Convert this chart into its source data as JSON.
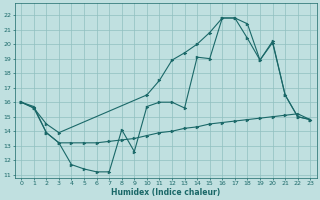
{
  "background_color": "#c0e0e0",
  "grid_color": "#90c0c0",
  "line_color": "#1a6868",
  "xlabel": "Humidex (Indice chaleur)",
  "xlim": [
    -0.5,
    23.5
  ],
  "ylim": [
    10.8,
    22.8
  ],
  "yticks": [
    11,
    12,
    13,
    14,
    15,
    16,
    17,
    18,
    19,
    20,
    21,
    22
  ],
  "xticks": [
    0,
    1,
    2,
    3,
    4,
    5,
    6,
    7,
    8,
    9,
    10,
    11,
    12,
    13,
    14,
    15,
    16,
    17,
    18,
    19,
    20,
    21,
    22,
    23
  ],
  "line1_x": [
    0,
    1,
    2,
    3,
    4,
    5,
    6,
    7,
    8,
    9,
    10,
    11,
    12,
    13,
    14,
    15,
    16,
    17,
    18,
    19,
    20,
    21,
    22,
    23
  ],
  "line1_y": [
    16.0,
    15.7,
    13.9,
    13.2,
    11.7,
    11.4,
    11.2,
    11.2,
    14.1,
    12.6,
    15.7,
    16.0,
    16.0,
    15.6,
    19.1,
    19.0,
    21.8,
    21.8,
    21.4,
    18.9,
    20.2,
    16.5,
    15.0,
    14.8
  ],
  "line2_x": [
    0,
    1,
    2,
    3,
    4,
    5,
    6,
    7,
    8,
    9,
    10,
    11,
    12,
    13,
    14,
    15,
    16,
    17,
    18,
    19,
    20,
    21,
    22,
    23
  ],
  "line2_y": [
    16.0,
    15.6,
    13.9,
    13.2,
    13.2,
    13.2,
    13.2,
    13.3,
    13.4,
    13.5,
    13.7,
    13.9,
    14.0,
    14.2,
    14.3,
    14.5,
    14.6,
    14.7,
    14.8,
    14.9,
    15.0,
    15.1,
    15.2,
    14.8
  ],
  "line3_x": [
    0,
    1,
    2,
    3,
    10,
    11,
    12,
    13,
    14,
    15,
    16,
    17,
    18,
    19,
    20,
    21,
    22,
    23
  ],
  "line3_y": [
    16.0,
    15.6,
    14.5,
    13.9,
    16.5,
    17.5,
    18.9,
    19.4,
    20.0,
    20.8,
    21.8,
    21.8,
    20.4,
    18.9,
    20.1,
    16.5,
    15.0,
    14.8
  ]
}
